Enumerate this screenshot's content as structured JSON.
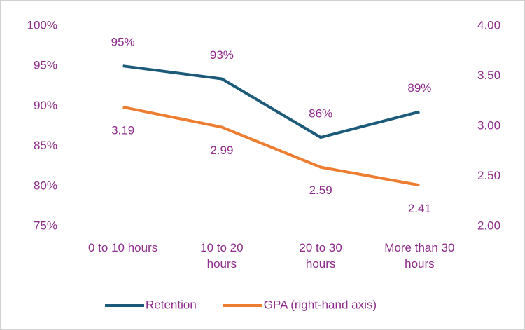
{
  "chart_data": {
    "type": "line",
    "categories": [
      "0 to 10 hours",
      "10 to 20 hours",
      "20 to 30 hours",
      "More than 30 hours"
    ],
    "series": [
      {
        "name": "Retention",
        "color": "#1c5a79",
        "values": [
          95,
          93.4,
          86.1,
          89.3
        ],
        "value_labels": [
          "95%",
          "93%",
          "86%",
          "89%"
        ]
      },
      {
        "name": "GPA (right-hand axis)",
        "color": "#ed7d31",
        "axis": "y2",
        "values": [
          3.19,
          2.99,
          2.59,
          2.41
        ]
      }
    ],
    "ylim": [
      75,
      100
    ],
    "yticks": [
      {
        "value": 75,
        "label": "75%"
      },
      {
        "value": 80,
        "label": "80%"
      },
      {
        "value": 85,
        "label": "85%"
      },
      {
        "value": 90,
        "label": "90%"
      },
      {
        "value": 95,
        "label": "95%"
      },
      {
        "value": 100,
        "label": "100%"
      }
    ],
    "y2lim": [
      2,
      4
    ],
    "y2ticks": [
      {
        "value": 2,
        "label": "2.00"
      },
      {
        "value": 2.5,
        "label": "2.50"
      },
      {
        "value": 3,
        "label": "3.00"
      },
      {
        "value": 3.5,
        "label": "3.50"
      },
      {
        "value": 4,
        "label": "4.00"
      }
    ],
    "grid": false,
    "legend": "bottom"
  }
}
